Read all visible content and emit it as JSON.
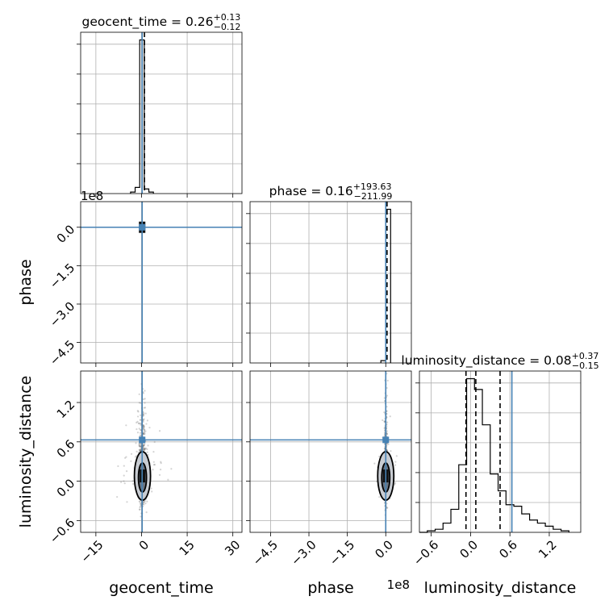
{
  "chart_data": {
    "type": "corner",
    "parameters": [
      "geocent_time",
      "phase",
      "luminosity_distance"
    ],
    "axis_labels": {
      "geocent_time": "geocent_time",
      "phase": "phase",
      "luminosity_distance": "luminosity_distance"
    },
    "truths": {
      "geocent_time": 0.2,
      "phase": 0.0,
      "luminosity_distance": 0.63
    },
    "ranges": {
      "geocent_time": [
        -20,
        33
      ],
      "phase": [
        -5.3,
        1.0
      ],
      "luminosity_distance": [
        -0.78,
        1.68
      ]
    },
    "phase_offset_text": "1e8",
    "ticks": {
      "geocent_time": {
        "values": [
          -15,
          0,
          15,
          30
        ],
        "labels": [
          "−15",
          "0",
          "15",
          "30"
        ]
      },
      "phase": {
        "values": [
          -4.5,
          -3.0,
          -1.5,
          0.0
        ],
        "labels": [
          "−4.5",
          "−3.0",
          "−1.5",
          "0.0"
        ]
      },
      "luminosity_distance": {
        "values": [
          -0.6,
          0.0,
          0.6,
          1.2
        ],
        "labels": [
          "−0.6",
          "0.0",
          "0.6",
          "1.2"
        ]
      }
    },
    "titles": {
      "geocent_time": {
        "text": "geocent_time = 0.26",
        "sup": "+0.13",
        "sub": "−0.12"
      },
      "phase": {
        "text": "phase = 0.16",
        "sup": "+193.63",
        "sub": "−211.99"
      },
      "luminosity_distance": {
        "text": "luminosity_distance = 0.08",
        "sup": "+0.37",
        "sub": "−0.15"
      }
    },
    "histograms": {
      "geocent_time": {
        "edges": [
          -3.6,
          -2.1,
          -0.6,
          0.9,
          2.4,
          3.9
        ],
        "counts": [
          0.01,
          0.04,
          1.0,
          0.03,
          0.01
        ]
      },
      "phase": {
        "edges": [
          -0.19,
          0.0,
          0.19
        ],
        "counts": [
          0.015,
          1.0
        ]
      },
      "luminosity_distance": {
        "edges": [
          -0.78,
          -0.66,
          -0.54,
          -0.42,
          -0.3,
          -0.18,
          -0.06,
          0.06,
          0.18,
          0.3,
          0.42,
          0.54,
          0.66,
          0.78,
          0.9,
          1.02,
          1.14,
          1.26,
          1.38,
          1.5
        ],
        "counts": [
          0.0,
          0.01,
          0.02,
          0.06,
          0.15,
          0.44,
          1.0,
          0.93,
          0.7,
          0.38,
          0.27,
          0.18,
          0.17,
          0.12,
          0.08,
          0.06,
          0.04,
          0.02,
          0.01
        ],
        "quantiles": [
          -0.07,
          0.08,
          0.45
        ]
      }
    },
    "grid": true
  }
}
